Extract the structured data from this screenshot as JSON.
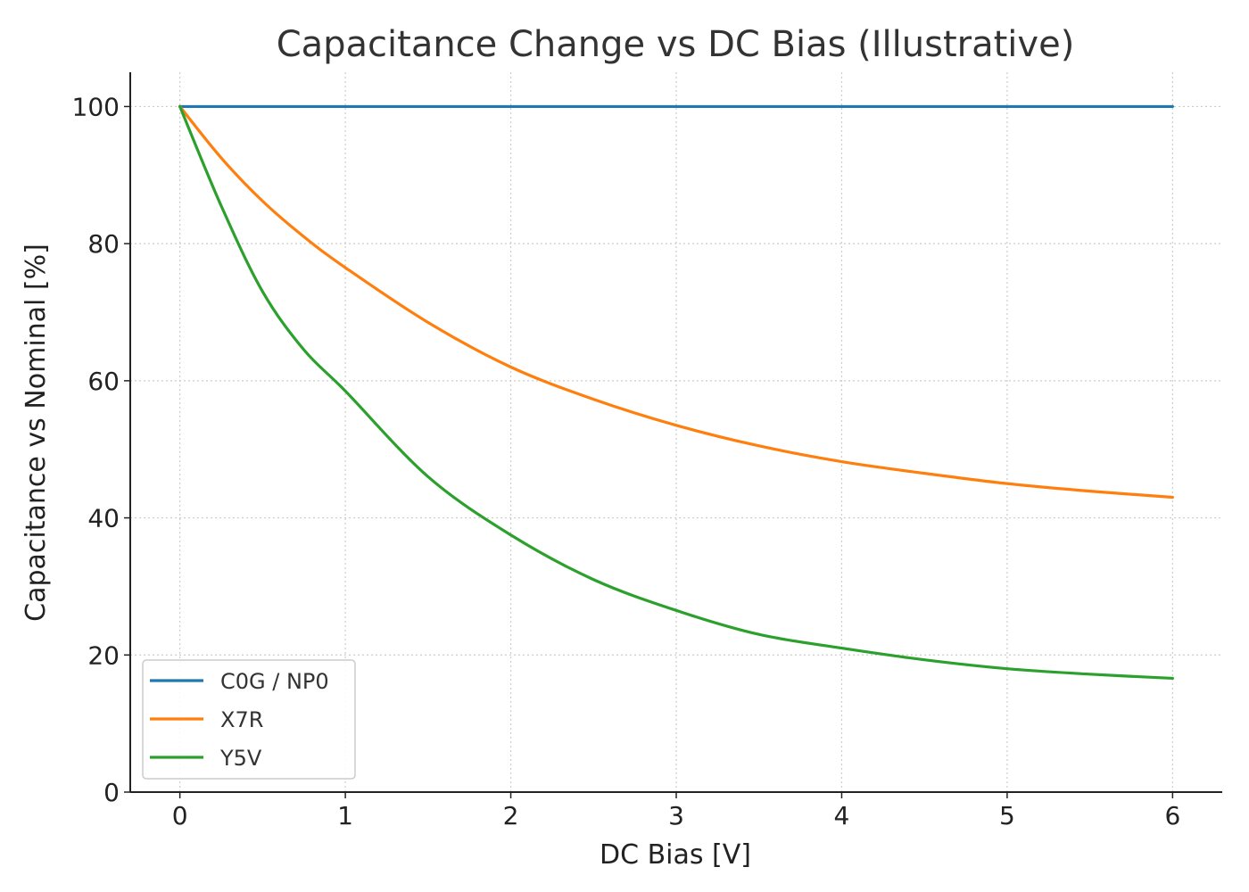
{
  "chart_data": {
    "type": "line",
    "title": "Capacitance Change vs DC Bias (Illustrative)",
    "xlabel": "DC Bias [V]",
    "ylabel": "Capacitance vs Nominal [%]",
    "xlim": [
      -0.3,
      6.3
    ],
    "ylim": [
      0,
      105
    ],
    "x_ticks": [
      0,
      1,
      2,
      3,
      4,
      5,
      6
    ],
    "y_ticks": [
      0,
      20,
      40,
      60,
      80,
      100
    ],
    "grid": true,
    "legend_position": "bottom-left",
    "x": [
      0,
      0.25,
      0.5,
      0.75,
      1,
      1.5,
      2,
      2.5,
      3,
      3.5,
      4,
      4.5,
      5,
      5.5,
      6
    ],
    "series": [
      {
        "name": "C0G / NP0",
        "color": "#1f77b4",
        "values": [
          100,
          100,
          100,
          100,
          100,
          100,
          100,
          100,
          100,
          100,
          100,
          100,
          100,
          100,
          100
        ]
      },
      {
        "name": "X7R",
        "color": "#ff7f0e",
        "values": [
          100,
          92.5,
          86.2,
          81.0,
          76.5,
          68.5,
          62.0,
          57.3,
          53.5,
          50.5,
          48.2,
          46.5,
          45.0,
          43.9,
          43.0
        ]
      },
      {
        "name": "Y5V",
        "color": "#2ca02c",
        "values": [
          100,
          85.5,
          73.0,
          64.5,
          58.5,
          46.0,
          37.5,
          31.0,
          26.5,
          23.0,
          21.0,
          19.3,
          18.0,
          17.2,
          16.6
        ]
      }
    ]
  }
}
